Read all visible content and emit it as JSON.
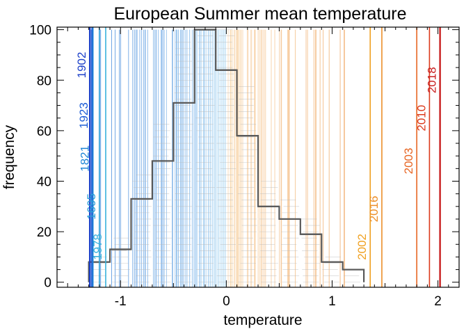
{
  "chart_data": {
    "type": "histogram",
    "title": "European Summer mean temperature",
    "xlabel": "temperature",
    "ylabel": "frequency",
    "xlim": [
      -1.6,
      2.2
    ],
    "ylim": [
      -2,
      101
    ],
    "xticks": [
      -1,
      0,
      1,
      2
    ],
    "xtick_labels": [
      "-1",
      "0",
      "1",
      "2"
    ],
    "yticks": [
      0,
      20,
      40,
      60,
      80,
      100
    ],
    "ytick_labels": [
      "0",
      "20",
      "40",
      "60",
      "80",
      "100"
    ],
    "grid": false,
    "histogram": {
      "edges": [
        -1.3,
        -1.1,
        -0.9,
        -0.7,
        -0.5,
        -0.3,
        -0.1,
        0.1,
        0.3,
        0.5,
        0.7,
        0.9,
        1.1,
        1.3
      ],
      "counts": [
        8,
        13,
        33,
        48,
        71,
        100,
        84,
        58,
        30,
        25,
        19,
        8,
        5
      ]
    },
    "labeled_years": [
      {
        "year": "1902",
        "x": -1.29,
        "label_y": 86,
        "color": "#1b3fc9"
      },
      {
        "year": "1923",
        "x": -1.27,
        "label_y": 66,
        "color": "#1f5ed6"
      },
      {
        "year": "1821",
        "x": -1.26,
        "label_y": 49,
        "color": "#1f86d6"
      },
      {
        "year": "1695",
        "x": -1.2,
        "label_y": 30,
        "color": "#2a9fd8"
      },
      {
        "year": "1978",
        "x": -1.14,
        "label_y": 14,
        "color": "#38b2dc"
      },
      {
        "year": "2002",
        "x": 1.36,
        "label_y": 14,
        "color": "#f0a020"
      },
      {
        "year": "2016",
        "x": 1.47,
        "label_y": 29,
        "color": "#ec8e28"
      },
      {
        "year": "2003",
        "x": 1.8,
        "label_y": 48,
        "color": "#e76522"
      },
      {
        "year": "2010",
        "x": 1.92,
        "label_y": 65,
        "color": "#dc3a1c"
      },
      {
        "year": "2018",
        "x": 2.02,
        "label_y": 80,
        "color": "#c81e1e"
      }
    ]
  }
}
